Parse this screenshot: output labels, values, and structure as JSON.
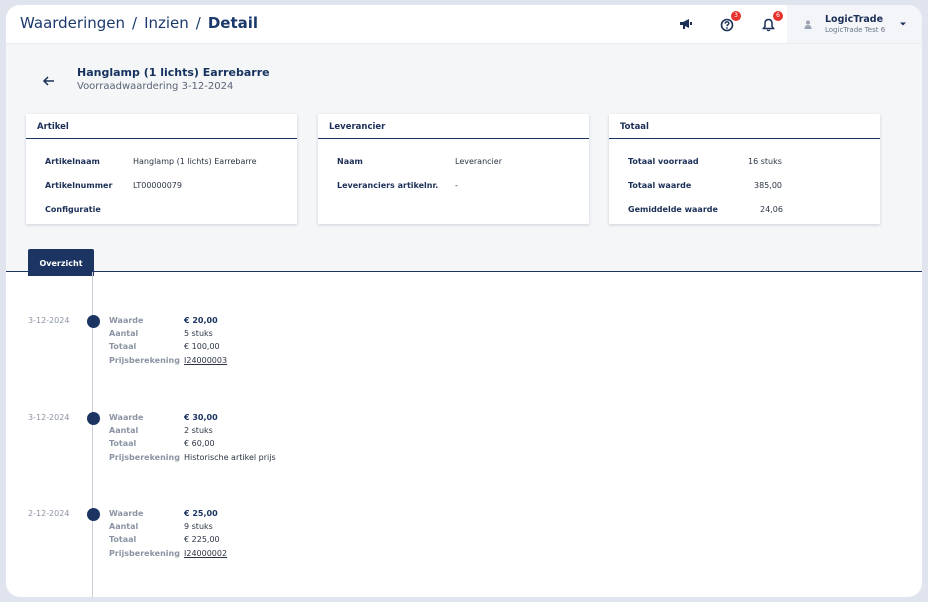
{
  "breadcrumb": {
    "level1": "Waarderingen",
    "level2": "Inzien",
    "current": "Detail",
    "separator": "/"
  },
  "topbar": {
    "icons": [
      "megaphone-icon",
      "help-icon",
      "bell-icon"
    ],
    "help_badge": "3",
    "notification_badge": "6",
    "user_name": "LogicTrade",
    "user_org": "LogicTrade Test 6"
  },
  "item": {
    "title": "Hanglamp (1 lichts) Earrebarre",
    "subtitle": "Voorraadwaardering 3-12-2024"
  },
  "cards": {
    "artikel": {
      "title": "Artikel",
      "rows": [
        {
          "label": "Artikelnaam",
          "value": "Hanglamp (1 lichts) Earrebarre"
        },
        {
          "label": "Artikelnummer",
          "value": "LT00000079"
        },
        {
          "label": "Configuratie",
          "value": ""
        }
      ]
    },
    "leverancier": {
      "title": "Leverancier",
      "rows": [
        {
          "label": "Naam",
          "value": "Leverancier"
        },
        {
          "label": "Leveranciers artikelnr.",
          "value": "-"
        }
      ]
    },
    "totaal": {
      "title": "Totaal",
      "rows": [
        {
          "label": "Totaal voorraad",
          "value": "16 stuks"
        },
        {
          "label": "Totaal waarde",
          "value": "385,00"
        },
        {
          "label": "Gemiddelde waarde",
          "value": "24,06"
        }
      ]
    }
  },
  "tabs": [
    {
      "label": "Overzicht",
      "active": true
    }
  ],
  "timeline": [
    {
      "date": "3-12-2024",
      "waarde_label": "Waarde",
      "waarde": "€ 20,00",
      "aantal_label": "Aantal",
      "aantal": "5 stuks",
      "totaal_label": "Totaal",
      "totaal": "€ 100,00",
      "prijs_label": "Prijsberekening",
      "prijs": "I24000003",
      "prijs_is_link": true
    },
    {
      "date": "3-12-2024",
      "waarde_label": "Waarde",
      "waarde": "€ 30,00",
      "aantal_label": "Aantal",
      "aantal": "2 stuks",
      "totaal_label": "Totaal",
      "totaal": "€ 60,00",
      "prijs_label": "Prijsberekening",
      "prijs": "Historische artikel prijs",
      "prijs_is_link": false
    },
    {
      "date": "2-12-2024",
      "waarde_label": "Waarde",
      "waarde": "€ 25,00",
      "aantal_label": "Aantal",
      "aantal": "9 stuks",
      "totaal_label": "Totaal",
      "totaal": "€ 225,00",
      "prijs_label": "Prijsberekening",
      "prijs": "I24000002",
      "prijs_is_link": true
    }
  ],
  "colors": {
    "primary": "#1b3461",
    "badge": "#e5322d",
    "header_bg": "#f4f6f8"
  }
}
